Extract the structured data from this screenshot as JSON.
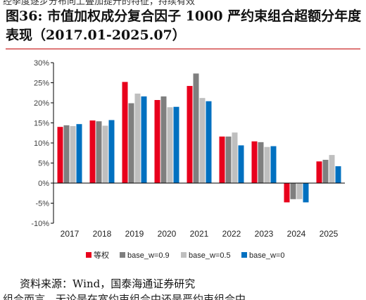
{
  "header": {
    "cut_text": "经季度逐步分布向上叠加提升的特征，持续有效",
    "title": "图36:  市值加权成分复合因子 1000 严约束组合超额分年度表现（2017.01-2025.07）"
  },
  "chart_data": {
    "type": "bar",
    "categories": [
      "2017",
      "2018",
      "2019",
      "2020",
      "2021",
      "2022",
      "2023",
      "2024",
      "2025"
    ],
    "series": [
      {
        "name": "等权",
        "color": "#e8001c",
        "values": [
          14.0,
          15.6,
          25.2,
          20.7,
          24.2,
          11.6,
          10.4,
          -4.8,
          5.4
        ]
      },
      {
        "name": "base_w=0.9",
        "color": "#7f7f7f",
        "values": [
          14.4,
          15.4,
          19.9,
          21.6,
          27.3,
          11.6,
          10.2,
          -4.0,
          5.8
        ]
      },
      {
        "name": "base_w=0.5",
        "color": "#bfbfbf",
        "values": [
          14.2,
          14.3,
          22.3,
          18.9,
          21.2,
          12.6,
          9.0,
          -4.0,
          7.0
        ]
      },
      {
        "name": "base_w=0",
        "color": "#0070c0",
        "values": [
          14.7,
          15.7,
          21.6,
          19.0,
          20.4,
          9.4,
          9.2,
          -4.8,
          4.2
        ]
      }
    ],
    "yticks": [
      "30%",
      "25%",
      "20%",
      "15%",
      "10%",
      "5%",
      "0%",
      "-5%",
      "-10%"
    ],
    "ylim": [
      -10,
      30
    ],
    "grid": false,
    "legend_position": "bottom"
  },
  "footer": {
    "source": "资料来源：Wind，国泰海通证券研究",
    "cut_text": "组合而言，无论是在宽约束组合中还是严约束组合中"
  }
}
